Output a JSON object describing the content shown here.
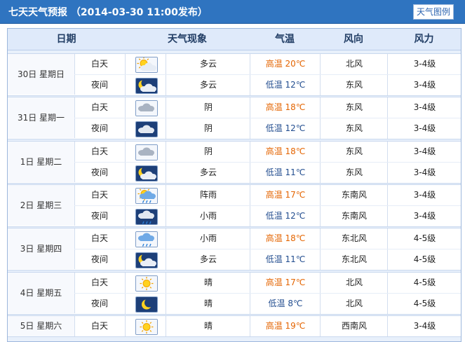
{
  "header": {
    "title": "七天天气预报 （2014-03-30 11:00发布）",
    "legend_button": "天气图例"
  },
  "columns": [
    "日期",
    "天气现象",
    "气温",
    "风向",
    "风力"
  ],
  "forecast": [
    {
      "date": "30日 星期日",
      "rows": [
        {
          "period": "白天",
          "icon": "sun-cloud-icon",
          "weather": "多云",
          "temp_label": "高温",
          "temp": "20℃",
          "wind_dir": "北风",
          "wind_force": "3-4级"
        },
        {
          "period": "夜间",
          "icon": "moon-cloud-icon",
          "weather": "多云",
          "temp_label": "低温",
          "temp": "12℃",
          "wind_dir": "东风",
          "wind_force": "3-4级"
        }
      ]
    },
    {
      "date": "31日 星期一",
      "rows": [
        {
          "period": "白天",
          "icon": "overcast-icon",
          "weather": "阴",
          "temp_label": "高温",
          "temp": "18℃",
          "wind_dir": "东风",
          "wind_force": "3-4级"
        },
        {
          "period": "夜间",
          "icon": "overcast-night-icon",
          "weather": "阴",
          "temp_label": "低温",
          "temp": "12℃",
          "wind_dir": "东风",
          "wind_force": "3-4级"
        }
      ]
    },
    {
      "date": "1日 星期二",
      "rows": [
        {
          "period": "白天",
          "icon": "overcast-icon",
          "weather": "阴",
          "temp_label": "高温",
          "temp": "18℃",
          "wind_dir": "东风",
          "wind_force": "3-4级"
        },
        {
          "period": "夜间",
          "icon": "moon-cloud-icon",
          "weather": "多云",
          "temp_label": "低温",
          "temp": "11℃",
          "wind_dir": "东风",
          "wind_force": "3-4级"
        }
      ]
    },
    {
      "date": "2日 星期三",
      "rows": [
        {
          "period": "白天",
          "icon": "shower-icon",
          "weather": "阵雨",
          "temp_label": "高温",
          "temp": "17℃",
          "wind_dir": "东南风",
          "wind_force": "3-4级"
        },
        {
          "period": "夜间",
          "icon": "light-rain-night-icon",
          "weather": "小雨",
          "temp_label": "低温",
          "temp": "12℃",
          "wind_dir": "东南风",
          "wind_force": "3-4级"
        }
      ]
    },
    {
      "date": "3日 星期四",
      "rows": [
        {
          "period": "白天",
          "icon": "light-rain-icon",
          "weather": "小雨",
          "temp_label": "高温",
          "temp": "18℃",
          "wind_dir": "东北风",
          "wind_force": "4-5级"
        },
        {
          "period": "夜间",
          "icon": "moon-cloud-icon",
          "weather": "多云",
          "temp_label": "低温",
          "temp": "11℃",
          "wind_dir": "东北风",
          "wind_force": "4-5级"
        }
      ]
    },
    {
      "date": "4日 星期五",
      "rows": [
        {
          "period": "白天",
          "icon": "sun-icon",
          "weather": "晴",
          "temp_label": "高温",
          "temp": "17℃",
          "wind_dir": "北风",
          "wind_force": "4-5级"
        },
        {
          "period": "夜间",
          "icon": "moon-icon",
          "weather": "晴",
          "temp_label": "低温",
          "temp": "8℃",
          "wind_dir": "北风",
          "wind_force": "4-5级"
        }
      ]
    },
    {
      "date": "5日 星期六",
      "rows": [
        {
          "period": "白天",
          "icon": "sun-icon",
          "weather": "晴",
          "temp_label": "高温",
          "temp": "19℃",
          "wind_dir": "西南风",
          "wind_force": "3-4级"
        }
      ]
    }
  ]
}
